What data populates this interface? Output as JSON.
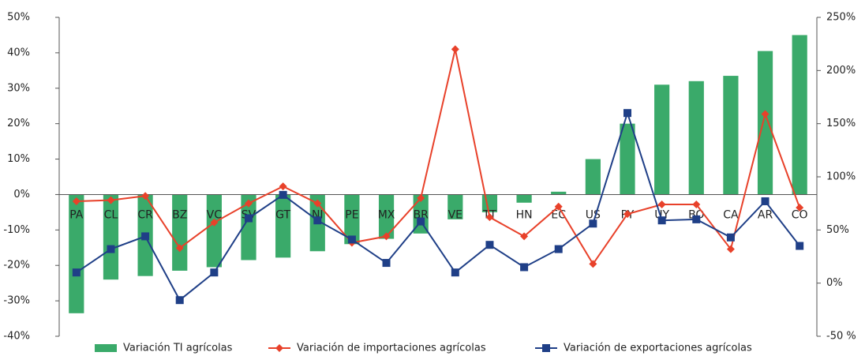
{
  "chart_data": {
    "type": "bar",
    "categories": [
      "PA",
      "CL",
      "CR",
      "BZ",
      "VC",
      "SV",
      "GT",
      "NI",
      "PE",
      "MX",
      "BR",
      "VE",
      "TT",
      "HN",
      "EC",
      "US",
      "PY",
      "UY",
      "BO",
      "CA",
      "AR",
      "CO"
    ],
    "series": [
      {
        "name": "Variación TI agrícolas",
        "type": "bar",
        "color": "#3aaa6a",
        "values": [
          -33.5,
          -24,
          -23,
          -21.5,
          -20.5,
          -18.5,
          -17.8,
          -16,
          -14,
          -12.5,
          -11,
          -7,
          -5,
          -2.3,
          0.8,
          10,
          20,
          31,
          32,
          33.5,
          40.5,
          45
        ]
      },
      {
        "name": "Variación de importaciones agrícolas",
        "type": "line",
        "axis": "y2",
        "color": "#e8412a",
        "marker": "diamond",
        "values": [
          77,
          78,
          82,
          33,
          57,
          75,
          91,
          75,
          38,
          44,
          80,
          220,
          62,
          44,
          72,
          18,
          65,
          74,
          74,
          32,
          159,
          71
        ]
      },
      {
        "name": "Variación de exportaciones agrícolas",
        "type": "line",
        "axis": "y2",
        "color": "#1f3f87",
        "marker": "square",
        "values": [
          10,
          32,
          44,
          -16,
          10,
          61,
          83,
          59,
          41,
          19,
          58,
          10,
          36,
          15,
          32,
          56,
          160,
          59,
          60,
          43,
          77,
          35
        ]
      }
    ],
    "ylim": [
      -40,
      50
    ],
    "yticks": [
      {
        "value": -40,
        "label": "-40%"
      },
      {
        "value": -30,
        "label": "-30%"
      },
      {
        "value": -20,
        "label": "-20%"
      },
      {
        "value": -10,
        "label": "-10%"
      },
      {
        "value": 0,
        "label": "0%"
      },
      {
        "value": 10,
        "label": "10%"
      },
      {
        "value": 20,
        "label": "20%"
      },
      {
        "value": 30,
        "label": "30%"
      },
      {
        "value": 40,
        "label": "40%"
      },
      {
        "value": 50,
        "label": "50%"
      }
    ],
    "y2lim": [
      -50,
      250
    ],
    "y2ticks": [
      {
        "value": -50,
        "label": "-50 %"
      },
      {
        "value": 0,
        "label": "0%"
      },
      {
        "value": 50,
        "label": "50%"
      },
      {
        "value": 100,
        "label": "100%"
      },
      {
        "value": 150,
        "label": "150%"
      },
      {
        "value": 200,
        "label": "200%"
      },
      {
        "value": 250,
        "label": "250%"
      }
    ],
    "legend": "bottom"
  }
}
